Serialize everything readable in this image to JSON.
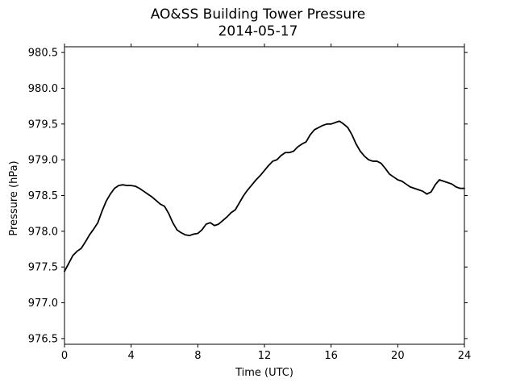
{
  "chart_data": {
    "type": "line",
    "title": "AO&SS Building Tower Pressure",
    "subtitle": "2014-05-17",
    "xlabel": "Time (UTC)",
    "ylabel": "Pressure (hPa)",
    "xlim": [
      0,
      24
    ],
    "ylim": [
      976.42,
      980.58
    ],
    "xticks": [
      0,
      4,
      8,
      12,
      16,
      20,
      24
    ],
    "xtick_labels": [
      "0",
      "4",
      "8",
      "12",
      "16",
      "20",
      "24"
    ],
    "yticks": [
      976.5,
      977.0,
      977.5,
      978.0,
      978.5,
      979.0,
      979.5,
      980.0,
      980.5
    ],
    "ytick_labels": [
      "976.5",
      "977.0",
      "977.5",
      "978.0",
      "978.5",
      "979.0",
      "979.5",
      "980.0",
      "980.5"
    ],
    "grid": false,
    "series": [
      {
        "color": "#000000",
        "x": [
          0,
          0.25,
          0.5,
          0.75,
          1.0,
          1.25,
          1.5,
          1.75,
          2.0,
          2.25,
          2.5,
          2.75,
          3.0,
          3.25,
          3.5,
          3.75,
          4.0,
          4.25,
          4.5,
          4.75,
          5.0,
          5.25,
          5.5,
          5.75,
          6.0,
          6.25,
          6.5,
          6.75,
          7.0,
          7.25,
          7.5,
          7.75,
          8.0,
          8.25,
          8.5,
          8.75,
          9.0,
          9.25,
          9.5,
          9.75,
          10.0,
          10.25,
          10.5,
          10.75,
          11.0,
          11.25,
          11.5,
          11.75,
          12.0,
          12.25,
          12.5,
          12.75,
          13.0,
          13.25,
          13.5,
          13.75,
          14.0,
          14.25,
          14.5,
          14.75,
          15.0,
          15.25,
          15.5,
          15.75,
          16.0,
          16.25,
          16.5,
          16.75,
          17.0,
          17.25,
          17.5,
          17.75,
          18.0,
          18.25,
          18.5,
          18.75,
          19.0,
          19.25,
          19.5,
          19.75,
          20.0,
          20.25,
          20.5,
          20.75,
          21.0,
          21.25,
          21.5,
          21.75,
          22.0,
          22.25,
          22.5,
          22.75,
          23.0,
          23.25,
          23.5,
          23.75,
          24.0
        ],
        "values": [
          977.44,
          977.55,
          977.66,
          977.72,
          977.76,
          977.85,
          977.95,
          978.03,
          978.12,
          978.28,
          978.42,
          978.52,
          978.6,
          978.64,
          978.65,
          978.64,
          978.64,
          978.63,
          978.6,
          978.56,
          978.52,
          978.48,
          978.43,
          978.38,
          978.35,
          978.25,
          978.12,
          978.02,
          977.98,
          977.95,
          977.94,
          977.96,
          977.97,
          978.02,
          978.1,
          978.12,
          978.08,
          978.1,
          978.15,
          978.2,
          978.26,
          978.3,
          978.4,
          978.5,
          978.58,
          978.65,
          978.72,
          978.78,
          978.85,
          978.92,
          978.98,
          979.0,
          979.06,
          979.1,
          979.1,
          979.12,
          979.18,
          979.22,
          979.25,
          979.35,
          979.42,
          979.45,
          979.48,
          979.5,
          979.5,
          979.52,
          979.54,
          979.5,
          979.45,
          979.35,
          979.22,
          979.12,
          979.05,
          979.0,
          978.98,
          978.98,
          978.95,
          978.88,
          978.8,
          978.76,
          978.72,
          978.7,
          978.66,
          978.62,
          978.6,
          978.58,
          978.56,
          978.52,
          978.55,
          978.65,
          978.72,
          978.7,
          978.68,
          978.66,
          978.62,
          978.6,
          978.6
        ]
      }
    ]
  }
}
